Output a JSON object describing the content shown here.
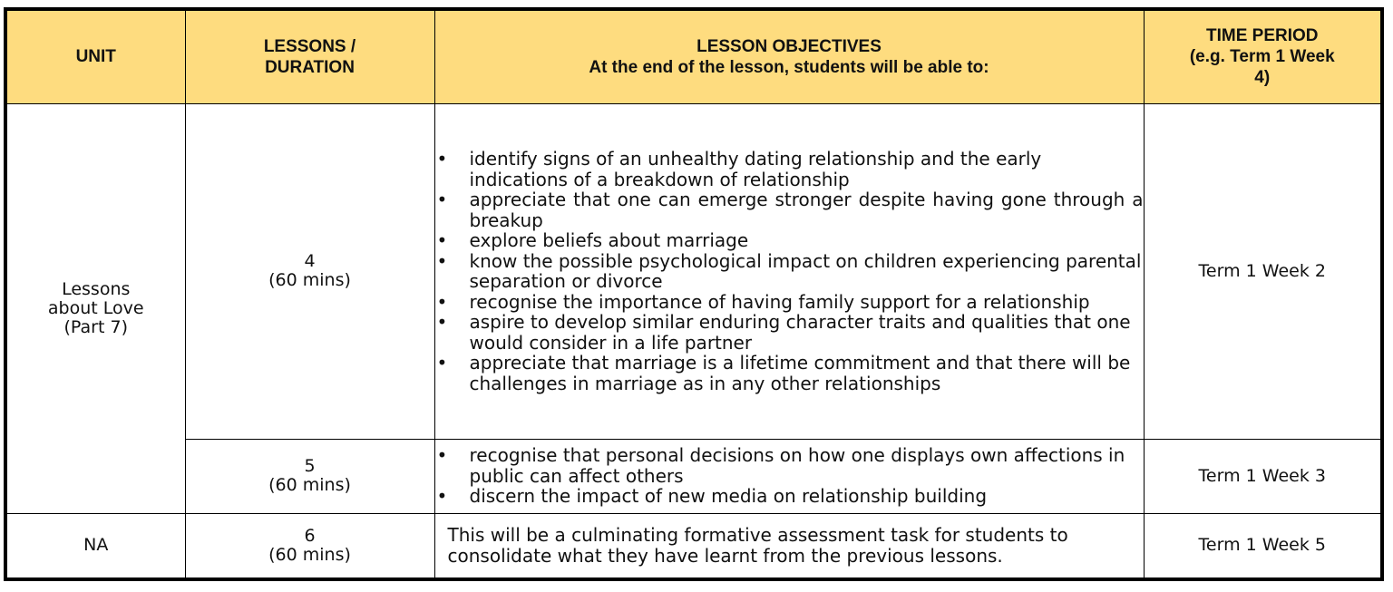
{
  "header": {
    "unit": "UNIT",
    "lessons_line1": "LESSONS /",
    "lessons_line2": "DURATION",
    "objectives_line1": "LESSON OBJECTIVES",
    "objectives_line2": "At the end of the lesson, students will be able to:",
    "time_line1": "TIME PERIOD",
    "time_line2": "(e.g. Term 1 Week",
    "time_line3": "4)"
  },
  "rows": [
    {
      "unit_line1": "Lessons",
      "unit_line2": "about Love",
      "unit_line3": "(Part 7)",
      "lesson_number": "4",
      "duration": "(60 mins)",
      "objectives": [
        "identify signs of an unhealthy dating relationship and the early indications of a breakdown of relationship",
        "appreciate that one can emerge stronger despite having gone through a breakup",
        "explore beliefs about marriage",
        "know the possible psychological impact on children experiencing parental separation or divorce",
        "recognise the importance of having family support for a relationship",
        "aspire to develop similar enduring character traits and qualities that one would consider in a life partner",
        "appreciate that marriage is a lifetime commitment and that there will be challenges in marriage as in any other relationships"
      ],
      "time_period": "Term 1 Week 2"
    },
    {
      "lesson_number": "5",
      "duration": "(60 mins)",
      "objectives": [
        "recognise that personal decisions on how one displays own affections in public can affect others",
        "discern the impact of new media on relationship building"
      ],
      "time_period": "Term 1 Week 3"
    },
    {
      "unit": "NA",
      "lesson_number": "6",
      "duration": "(60 mins)",
      "description": "This will be a culminating formative assessment task for students to consolidate what they have learnt from the previous lessons.",
      "time_period": "Term 1 Week 5"
    }
  ],
  "colors": {
    "header_background": "#fedc7f",
    "border": "#000000"
  }
}
